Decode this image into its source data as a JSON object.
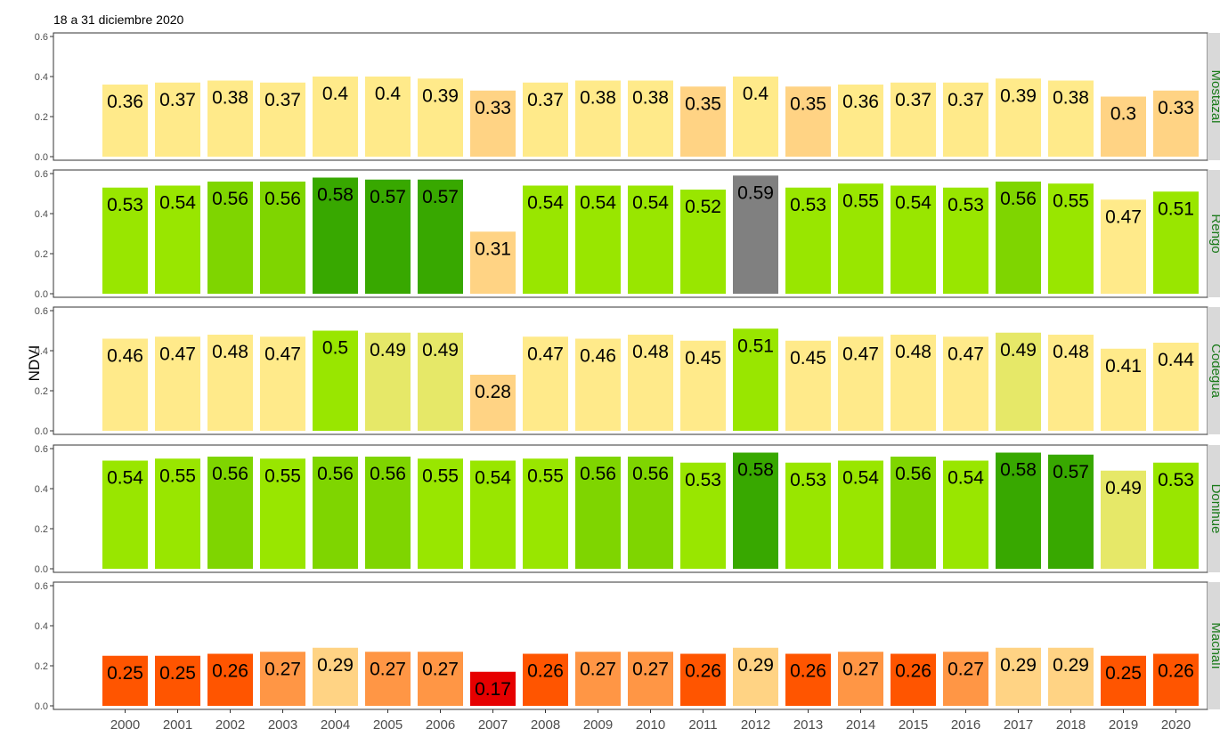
{
  "chart_data": {
    "type": "bar",
    "title": "18 a 31 diciembre 2020",
    "ylabel": "NDVI",
    "xlabel": "",
    "ylim": [
      0,
      0.6
    ],
    "yticks": [
      "0.0",
      "0.2",
      "0.4",
      "0.6"
    ],
    "categories": [
      "2000",
      "2001",
      "2002",
      "2003",
      "2004",
      "2005",
      "2006",
      "2007",
      "2008",
      "2009",
      "2010",
      "2011",
      "2012",
      "2013",
      "2014",
      "2015",
      "2016",
      "2017",
      "2018",
      "2019",
      "2020"
    ],
    "grid": false,
    "facet_strip_color": "#1a7a1a",
    "panels": [
      {
        "name": "Mostazal",
        "values": [
          0.36,
          0.37,
          0.38,
          0.37,
          0.4,
          0.4,
          0.39,
          0.33,
          0.37,
          0.38,
          0.38,
          0.35,
          0.4,
          0.35,
          0.36,
          0.37,
          0.37,
          0.39,
          0.38,
          0.3,
          0.33
        ],
        "labels": [
          "0.36",
          "0.37",
          "0.38",
          "0.37",
          "0.4",
          "0.4",
          "0.39",
          "0.33",
          "0.37",
          "0.38",
          "0.38",
          "0.35",
          "0.4",
          "0.35",
          "0.36",
          "0.37",
          "0.37",
          "0.39",
          "0.38",
          "0.3",
          "0.33"
        ],
        "colors": [
          "#ffea8a",
          "#ffea8a",
          "#ffea8a",
          "#ffea8a",
          "#ffea8a",
          "#ffea8a",
          "#ffea8a",
          "#ffd384",
          "#ffea8a",
          "#ffea8a",
          "#ffea8a",
          "#ffd384",
          "#ffea8a",
          "#ffd384",
          "#ffea8a",
          "#ffea8a",
          "#ffea8a",
          "#ffea8a",
          "#ffea8a",
          "#ffd384",
          "#ffd384"
        ]
      },
      {
        "name": "Rengo",
        "values": [
          0.53,
          0.54,
          0.56,
          0.56,
          0.58,
          0.57,
          0.57,
          0.31,
          0.54,
          0.54,
          0.54,
          0.52,
          0.59,
          0.53,
          0.55,
          0.54,
          0.53,
          0.56,
          0.55,
          0.47,
          0.51
        ],
        "labels": [
          "0.53",
          "0.54",
          "0.56",
          "0.56",
          "0.58",
          "0.57",
          "0.57",
          "0.31",
          "0.54",
          "0.54",
          "0.54",
          "0.52",
          "0.59",
          "0.53",
          "0.55",
          "0.54",
          "0.53",
          "0.56",
          "0.55",
          "0.47",
          "0.51"
        ],
        "colors": [
          "#99e600",
          "#99e600",
          "#7fd500",
          "#7fd500",
          "#38a800",
          "#38a800",
          "#38a800",
          "#ffd384",
          "#99e600",
          "#99e600",
          "#99e600",
          "#99e600",
          "#808080",
          "#99e600",
          "#99e600",
          "#99e600",
          "#99e600",
          "#7fd500",
          "#99e600",
          "#ffea8a",
          "#99e600"
        ]
      },
      {
        "name": "Codegua",
        "values": [
          0.46,
          0.47,
          0.48,
          0.47,
          0.5,
          0.49,
          0.49,
          0.28,
          0.47,
          0.46,
          0.48,
          0.45,
          0.51,
          0.45,
          0.47,
          0.48,
          0.47,
          0.49,
          0.48,
          0.41,
          0.44
        ],
        "labels": [
          "0.46",
          "0.47",
          "0.48",
          "0.47",
          "0.5",
          "0.49",
          "0.49",
          "0.28",
          "0.47",
          "0.46",
          "0.48",
          "0.45",
          "0.51",
          "0.45",
          "0.47",
          "0.48",
          "0.47",
          "0.49",
          "0.48",
          "0.41",
          "0.44"
        ],
        "colors": [
          "#ffea8a",
          "#ffea8a",
          "#ffea8a",
          "#ffea8a",
          "#99e600",
          "#e6e868",
          "#e6e868",
          "#ffd384",
          "#ffea8a",
          "#ffea8a",
          "#ffea8a",
          "#ffea8a",
          "#99e600",
          "#ffea8a",
          "#ffea8a",
          "#ffea8a",
          "#ffea8a",
          "#e6e868",
          "#ffea8a",
          "#ffea8a",
          "#ffea8a"
        ]
      },
      {
        "name": "Doñihue",
        "values": [
          0.54,
          0.55,
          0.56,
          0.55,
          0.56,
          0.56,
          0.55,
          0.54,
          0.55,
          0.56,
          0.56,
          0.53,
          0.58,
          0.53,
          0.54,
          0.56,
          0.54,
          0.58,
          0.57,
          0.49,
          0.53
        ],
        "labels": [
          "0.54",
          "0.55",
          "0.56",
          "0.55",
          "0.56",
          "0.56",
          "0.55",
          "0.54",
          "0.55",
          "0.56",
          "0.56",
          "0.53",
          "0.58",
          "0.53",
          "0.54",
          "0.56",
          "0.54",
          "0.58",
          "0.57",
          "0.49",
          "0.53"
        ],
        "colors": [
          "#99e600",
          "#99e600",
          "#7fd500",
          "#99e600",
          "#7fd500",
          "#7fd500",
          "#99e600",
          "#99e600",
          "#99e600",
          "#7fd500",
          "#7fd500",
          "#99e600",
          "#38a800",
          "#99e600",
          "#99e600",
          "#7fd500",
          "#99e600",
          "#38a800",
          "#38a800",
          "#e6e868",
          "#99e600"
        ]
      },
      {
        "name": "Machalí",
        "values": [
          0.25,
          0.25,
          0.26,
          0.27,
          0.29,
          0.27,
          0.27,
          0.17,
          0.26,
          0.27,
          0.27,
          0.26,
          0.29,
          0.26,
          0.27,
          0.26,
          0.27,
          0.29,
          0.29,
          0.25,
          0.26
        ],
        "labels": [
          "0.25",
          "0.25",
          "0.26",
          "0.27",
          "0.29",
          "0.27",
          "0.27",
          "0.17",
          "0.26",
          "0.27",
          "0.27",
          "0.26",
          "0.29",
          "0.26",
          "0.27",
          "0.26",
          "0.27",
          "0.29",
          "0.29",
          "0.25",
          "0.26"
        ],
        "colors": [
          "#ff5500",
          "#ff5500",
          "#ff5500",
          "#ff9645",
          "#ffd384",
          "#ff9645",
          "#ff9645",
          "#e60000",
          "#ff5500",
          "#ff9645",
          "#ff9645",
          "#ff5500",
          "#ffd384",
          "#ff5500",
          "#ff9645",
          "#ff5500",
          "#ff9645",
          "#ffd384",
          "#ffd384",
          "#ff5500",
          "#ff5500"
        ]
      }
    ]
  }
}
